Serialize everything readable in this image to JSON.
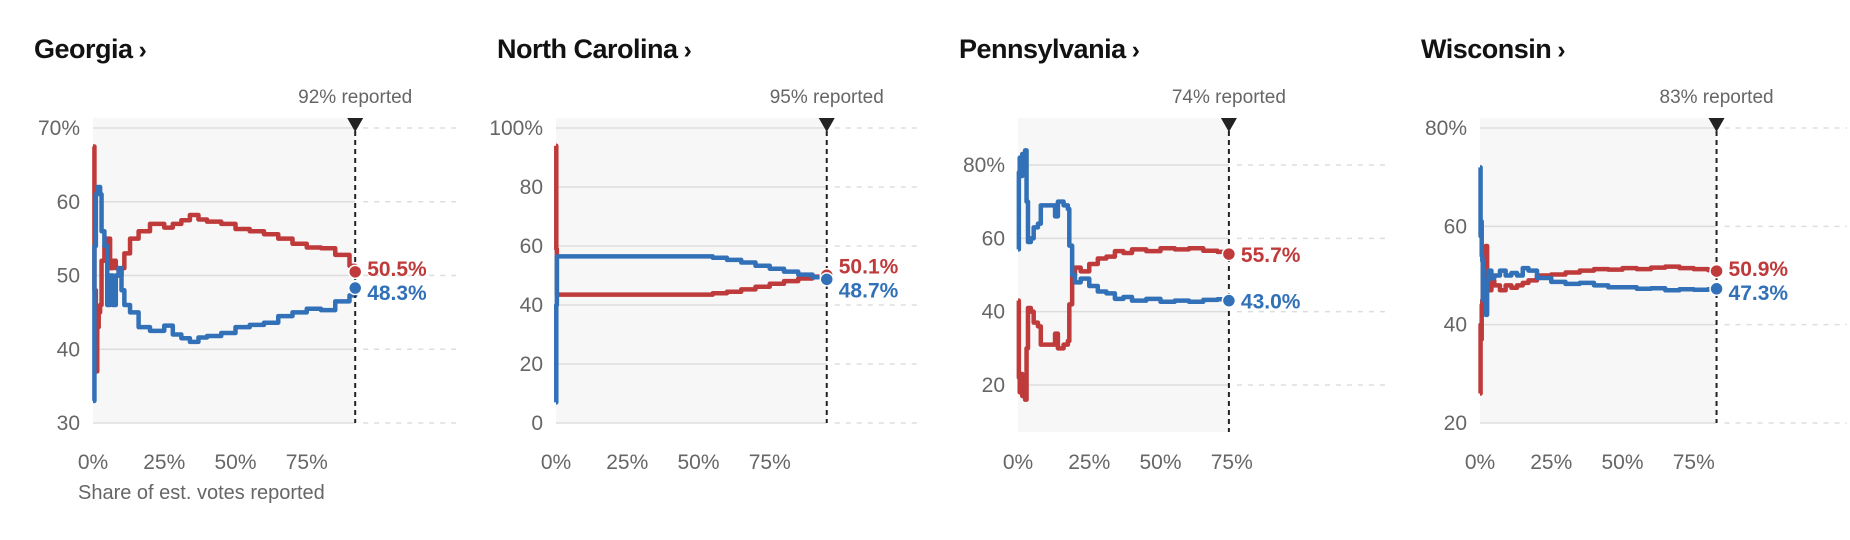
{
  "x_caption": "Share of est. votes reported",
  "colors": {
    "rep": "#bf3a3a",
    "dem": "#3271b8",
    "shade": "#f7f7f7",
    "grid": "#dddddd",
    "axis": "#666666"
  },
  "chart_data": [
    {
      "type": "line",
      "title": "Georgia",
      "title_suffix": "›",
      "reported_label": "92% reported",
      "reported_fraction": 0.92,
      "x_ticks": [
        "0%",
        "25%",
        "50%",
        "75%"
      ],
      "y_ticks": [
        "70%",
        "60",
        "50",
        "40",
        "30"
      ],
      "y_tick_values": [
        70,
        60,
        50,
        40,
        30
      ],
      "xlim": [
        0,
        1.25
      ],
      "ylim": [
        30,
        70
      ],
      "series": [
        {
          "party": "rep",
          "end_label": "50.5%",
          "points": [
            [
              0,
              67.5
            ],
            [
              0.005,
              48
            ],
            [
              0.01,
              37
            ],
            [
              0.015,
              43
            ],
            [
              0.02,
              45
            ],
            [
              0.025,
              46
            ],
            [
              0.03,
              52
            ],
            [
              0.04,
              54
            ],
            [
              0.05,
              55
            ],
            [
              0.06,
              51
            ],
            [
              0.07,
              52
            ],
            [
              0.08,
              51
            ],
            [
              0.09,
              50
            ],
            [
              0.1,
              51
            ],
            [
              0.11,
              53
            ],
            [
              0.13,
              55
            ],
            [
              0.16,
              56
            ],
            [
              0.2,
              57
            ],
            [
              0.25,
              56.5
            ],
            [
              0.28,
              57
            ],
            [
              0.31,
              57.5
            ],
            [
              0.34,
              58.2
            ],
            [
              0.37,
              57.6
            ],
            [
              0.4,
              57.3
            ],
            [
              0.45,
              57
            ],
            [
              0.5,
              56.3
            ],
            [
              0.55,
              56
            ],
            [
              0.6,
              55.6
            ],
            [
              0.65,
              55
            ],
            [
              0.7,
              54.3
            ],
            [
              0.75,
              53.8
            ],
            [
              0.8,
              53.7
            ],
            [
              0.85,
              52.8
            ],
            [
              0.9,
              51.3
            ],
            [
              0.92,
              50.5
            ]
          ]
        },
        {
          "party": "dem",
          "end_label": "48.3%",
          "points": [
            [
              0,
              33
            ],
            [
              0.005,
              54
            ],
            [
              0.01,
              61
            ],
            [
              0.015,
              62
            ],
            [
              0.02,
              62
            ],
            [
              0.025,
              61
            ],
            [
              0.03,
              56
            ],
            [
              0.04,
              54
            ],
            [
              0.05,
              46
            ],
            [
              0.06,
              50
            ],
            [
              0.07,
              46
            ],
            [
              0.08,
              50
            ],
            [
              0.09,
              51
            ],
            [
              0.1,
              48
            ],
            [
              0.11,
              46
            ],
            [
              0.13,
              45
            ],
            [
              0.16,
              43
            ],
            [
              0.2,
              42.5
            ],
            [
              0.25,
              43.2
            ],
            [
              0.28,
              42
            ],
            [
              0.31,
              41.5
            ],
            [
              0.34,
              41
            ],
            [
              0.37,
              41.6
            ],
            [
              0.4,
              41.8
            ],
            [
              0.45,
              42.2
            ],
            [
              0.5,
              43
            ],
            [
              0.55,
              43.3
            ],
            [
              0.6,
              43.6
            ],
            [
              0.65,
              44.5
            ],
            [
              0.7,
              45
            ],
            [
              0.75,
              45.5
            ],
            [
              0.8,
              45.3
            ],
            [
              0.85,
              46.5
            ],
            [
              0.9,
              47.3
            ],
            [
              0.92,
              48.3
            ]
          ]
        }
      ]
    },
    {
      "type": "line",
      "title": "North Carolina",
      "title_suffix": "›",
      "reported_label": "95% reported",
      "reported_fraction": 0.95,
      "x_ticks": [
        "0%",
        "25%",
        "50%",
        "75%"
      ],
      "y_ticks": [
        "100%",
        "80",
        "60",
        "40",
        "20",
        "0"
      ],
      "y_tick_values": [
        100,
        80,
        60,
        40,
        20,
        0
      ],
      "xlim": [
        0,
        1.3
      ],
      "ylim": [
        0,
        100
      ],
      "series": [
        {
          "party": "rep",
          "end_label": "50.1%",
          "points": [
            [
              0,
              94
            ],
            [
              0.001,
              59
            ],
            [
              0.003,
              43.5
            ],
            [
              0.2,
              43.5
            ],
            [
              0.4,
              43.5
            ],
            [
              0.5,
              43.5
            ],
            [
              0.55,
              44
            ],
            [
              0.6,
              44.5
            ],
            [
              0.65,
              45.3
            ],
            [
              0.7,
              46.2
            ],
            [
              0.75,
              47.2
            ],
            [
              0.8,
              48.1
            ],
            [
              0.85,
              49
            ],
            [
              0.9,
              49.6
            ],
            [
              0.95,
              50.1
            ]
          ]
        },
        {
          "party": "dem",
          "end_label": "48.7%",
          "points": [
            [
              0,
              7
            ],
            [
              0.001,
              40
            ],
            [
              0.003,
              56.5
            ],
            [
              0.2,
              56.5
            ],
            [
              0.4,
              56.5
            ],
            [
              0.5,
              56.5
            ],
            [
              0.55,
              56
            ],
            [
              0.6,
              55.3
            ],
            [
              0.65,
              54.4
            ],
            [
              0.7,
              53.3
            ],
            [
              0.75,
              52.3
            ],
            [
              0.8,
              51.3
            ],
            [
              0.85,
              50.3
            ],
            [
              0.9,
              49.4
            ],
            [
              0.95,
              48.7
            ]
          ]
        }
      ]
    },
    {
      "type": "line",
      "title": "Pennsylvania",
      "title_suffix": "›",
      "reported_label": "74% reported",
      "reported_fraction": 0.74,
      "x_ticks": [
        "0%",
        "25%",
        "50%",
        "75%"
      ],
      "y_ticks": [
        "80%",
        "60",
        "40",
        "20"
      ],
      "y_tick_values": [
        80,
        60,
        40,
        20
      ],
      "xlim": [
        0,
        1.3
      ],
      "ylim": [
        8,
        92
      ],
      "series": [
        {
          "party": "rep",
          "end_label": "55.7%",
          "points": [
            [
              0,
              43
            ],
            [
              0.003,
              22
            ],
            [
              0.006,
              18
            ],
            [
              0.01,
              23
            ],
            [
              0.015,
              17
            ],
            [
              0.02,
              22
            ],
            [
              0.025,
              16
            ],
            [
              0.03,
              30
            ],
            [
              0.035,
              41
            ],
            [
              0.045,
              40
            ],
            [
              0.055,
              37
            ],
            [
              0.07,
              36
            ],
            [
              0.08,
              31
            ],
            [
              0.11,
              31
            ],
            [
              0.13,
              34
            ],
            [
              0.14,
              30
            ],
            [
              0.16,
              31
            ],
            [
              0.175,
              32
            ],
            [
              0.18,
              42
            ],
            [
              0.19,
              50
            ],
            [
              0.2,
              52
            ],
            [
              0.22,
              51
            ],
            [
              0.25,
              53
            ],
            [
              0.28,
              54.5
            ],
            [
              0.31,
              55
            ],
            [
              0.34,
              56.5
            ],
            [
              0.37,
              56
            ],
            [
              0.4,
              57
            ],
            [
              0.45,
              56.5
            ],
            [
              0.5,
              57.3
            ],
            [
              0.55,
              57
            ],
            [
              0.6,
              57.3
            ],
            [
              0.65,
              56.6
            ],
            [
              0.7,
              56.3
            ],
            [
              0.74,
              55.7
            ]
          ]
        },
        {
          "party": "dem",
          "end_label": "43.0%",
          "points": [
            [
              0,
              57
            ],
            [
              0.003,
              78
            ],
            [
              0.006,
              82
            ],
            [
              0.01,
              77
            ],
            [
              0.015,
              83
            ],
            [
              0.02,
              78
            ],
            [
              0.025,
              84
            ],
            [
              0.03,
              70
            ],
            [
              0.035,
              59
            ],
            [
              0.045,
              60
            ],
            [
              0.055,
              63
            ],
            [
              0.07,
              64
            ],
            [
              0.08,
              69
            ],
            [
              0.11,
              69
            ],
            [
              0.13,
              66
            ],
            [
              0.14,
              70
            ],
            [
              0.16,
              69
            ],
            [
              0.175,
              68
            ],
            [
              0.18,
              58
            ],
            [
              0.19,
              50
            ],
            [
              0.2,
              48
            ],
            [
              0.22,
              49
            ],
            [
              0.25,
              47
            ],
            [
              0.28,
              45.5
            ],
            [
              0.31,
              45
            ],
            [
              0.34,
              43.5
            ],
            [
              0.37,
              44
            ],
            [
              0.4,
              43
            ],
            [
              0.45,
              43.5
            ],
            [
              0.5,
              42.7
            ],
            [
              0.55,
              43
            ],
            [
              0.6,
              42.7
            ],
            [
              0.65,
              43.2
            ],
            [
              0.7,
              43.4
            ],
            [
              0.74,
              43.0
            ]
          ]
        }
      ]
    },
    {
      "type": "line",
      "title": "Wisconsin",
      "title_suffix": "›",
      "reported_label": "83% reported",
      "reported_fraction": 0.83,
      "x_ticks": [
        "0%",
        "25%",
        "50%",
        "75%"
      ],
      "y_ticks": [
        "80%",
        "60",
        "40",
        "20"
      ],
      "y_tick_values": [
        80,
        60,
        40,
        20
      ],
      "xlim": [
        0,
        1.25
      ],
      "ylim": [
        20,
        80
      ],
      "series": [
        {
          "party": "rep",
          "end_label": "50.9%",
          "points": [
            [
              0,
              26
            ],
            [
              0.002,
              40
            ],
            [
              0.004,
              37
            ],
            [
              0.006,
              44
            ],
            [
              0.008,
              45
            ],
            [
              0.01,
              53
            ],
            [
              0.015,
              50
            ],
            [
              0.02,
              56
            ],
            [
              0.025,
              49
            ],
            [
              0.03,
              47
            ],
            [
              0.04,
              49
            ],
            [
              0.05,
              48
            ],
            [
              0.07,
              47
            ],
            [
              0.09,
              48
            ],
            [
              0.11,
              47.5
            ],
            [
              0.13,
              48
            ],
            [
              0.15,
              48.5
            ],
            [
              0.17,
              49
            ],
            [
              0.2,
              50
            ],
            [
              0.25,
              50.2
            ],
            [
              0.3,
              50.6
            ],
            [
              0.35,
              51
            ],
            [
              0.4,
              51.3
            ],
            [
              0.45,
              51.2
            ],
            [
              0.5,
              51.5
            ],
            [
              0.55,
              51.3
            ],
            [
              0.6,
              51.6
            ],
            [
              0.65,
              51.8
            ],
            [
              0.7,
              51.5
            ],
            [
              0.75,
              51.3
            ],
            [
              0.8,
              51.1
            ],
            [
              0.83,
              50.9
            ]
          ]
        },
        {
          "party": "dem",
          "end_label": "47.3%",
          "points": [
            [
              0,
              72
            ],
            [
              0.002,
              58
            ],
            [
              0.004,
              61
            ],
            [
              0.006,
              54
            ],
            [
              0.008,
              53
            ],
            [
              0.01,
              45
            ],
            [
              0.015,
              48
            ],
            [
              0.02,
              42
            ],
            [
              0.025,
              49
            ],
            [
              0.03,
              51
            ],
            [
              0.04,
              49.5
            ],
            [
              0.05,
              50
            ],
            [
              0.07,
              51
            ],
            [
              0.09,
              50
            ],
            [
              0.11,
              50.5
            ],
            [
              0.13,
              50
            ],
            [
              0.15,
              51.5
            ],
            [
              0.17,
              51
            ],
            [
              0.2,
              49.5
            ],
            [
              0.25,
              48.7
            ],
            [
              0.3,
              48.3
            ],
            [
              0.35,
              48.5
            ],
            [
              0.4,
              48
            ],
            [
              0.45,
              47.6
            ],
            [
              0.5,
              47.6
            ],
            [
              0.55,
              47.3
            ],
            [
              0.6,
              47.4
            ],
            [
              0.65,
              47
            ],
            [
              0.7,
              47.2
            ],
            [
              0.75,
              47.1
            ],
            [
              0.8,
              47.2
            ],
            [
              0.83,
              47.3
            ]
          ]
        }
      ]
    }
  ]
}
